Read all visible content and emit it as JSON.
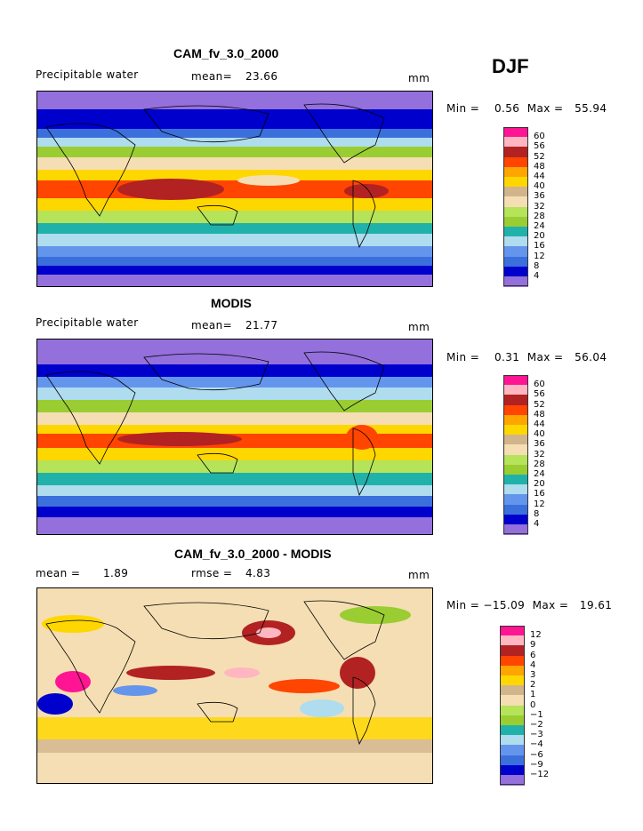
{
  "season": "DJF",
  "palette": [
    "#9370db",
    "#0000cd",
    "#3b6fdc",
    "#6495ed",
    "#afdcee",
    "#20b2aa",
    "#9acd32",
    "#b5e35a",
    "#f5deb3",
    "#d2b48c",
    "#ffd700",
    "#ffa500",
    "#ff4500",
    "#b22222",
    "#ffb6c1",
    "#ff1493"
  ],
  "diff_palette": [
    "#9370db",
    "#0000cd",
    "#3b6fdc",
    "#6495ed",
    "#afdcee",
    "#20b2aa",
    "#9acd32",
    "#b5e35a",
    "#f5deb3",
    "#d2b48c",
    "#ffd700",
    "#ffa500",
    "#ff4500",
    "#b22222",
    "#ffb6c1",
    "#ff1493"
  ],
  "panels": [
    {
      "title": "CAM_fv_3.0_2000",
      "left_label": "Precipitable water",
      "mid_label": "mean=",
      "mid_value": "23.66",
      "unit": "mm",
      "minmax": "Min =    0.56  Max =   55.94",
      "levels": [
        "60",
        "56",
        "52",
        "48",
        "44",
        "40",
        "36",
        "32",
        "28",
        "24",
        "20",
        "16",
        "12",
        "8",
        "4"
      ]
    },
    {
      "title": "MODIS",
      "left_label": "Precipitable water",
      "mid_label": "mean=",
      "mid_value": "21.77",
      "unit": "mm",
      "minmax": "Min =    0.31  Max =   56.04",
      "levels": [
        "60",
        "56",
        "52",
        "48",
        "44",
        "40",
        "36",
        "32",
        "28",
        "24",
        "20",
        "16",
        "12",
        "8",
        "4"
      ]
    },
    {
      "title": "CAM_fv_3.0_2000 - MODIS",
      "left_label": "mean =",
      "left_value": "1.89",
      "mid_label": "rmse =",
      "mid_value": "4.83",
      "unit": "mm",
      "minmax": "Min = −15.09  Max =   19.61",
      "levels": [
        "12",
        "9",
        "6",
        "4",
        "3",
        "2",
        "1",
        "0",
        "−1",
        "−2",
        "−3",
        "−4",
        "−6",
        "−9",
        "−12"
      ]
    }
  ]
}
